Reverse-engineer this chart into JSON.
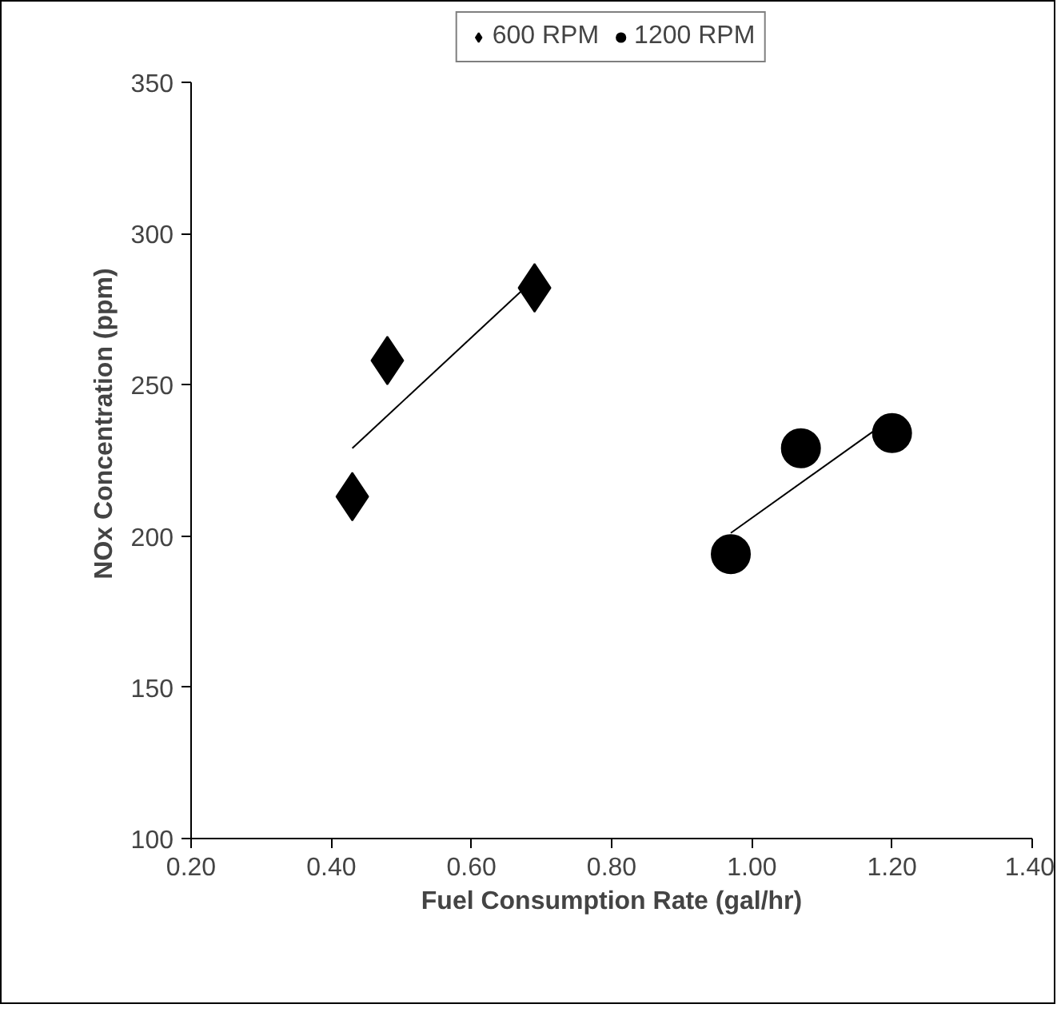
{
  "chart_data": {
    "type": "scatter",
    "xlabel": "Fuel Consumption Rate (gal/hr)",
    "ylabel": "NOx Concentration (ppm)",
    "xlim": [
      0.2,
      1.4
    ],
    "xticks": [
      {
        "value": 0.2,
        "label": "0.20"
      },
      {
        "value": 0.4,
        "label": "0.40"
      },
      {
        "value": 0.6,
        "label": "0.60"
      },
      {
        "value": 0.8,
        "label": "0.80"
      },
      {
        "value": 1.0,
        "label": "1.00"
      },
      {
        "value": 1.2,
        "label": "1.20"
      },
      {
        "value": 1.4,
        "label": "1.40"
      }
    ],
    "ylim": [
      100,
      350
    ],
    "yticks": [
      100,
      150,
      200,
      250,
      300,
      350
    ],
    "grid": false,
    "legend": "top",
    "series": [
      {
        "name": "600 RPM",
        "marker": "diamond",
        "color": "#000000",
        "x": [
          0.43,
          0.48,
          0.69
        ],
        "values": [
          213,
          258,
          282
        ]
      },
      {
        "name": "1200 RPM",
        "marker": "circle",
        "color": "#000000",
        "x": [
          0.97,
          1.07,
          1.2
        ],
        "values": [
          194,
          229,
          234
        ]
      },
      {
        "type": "line",
        "marker": "none",
        "color": "#000000",
        "x": [
          0.43,
          0.69
        ],
        "values": [
          229,
          285
        ]
      },
      {
        "type": "line",
        "marker": "none",
        "color": "#000000",
        "x": [
          0.97,
          1.2
        ],
        "values": [
          201,
          239
        ]
      }
    ]
  }
}
